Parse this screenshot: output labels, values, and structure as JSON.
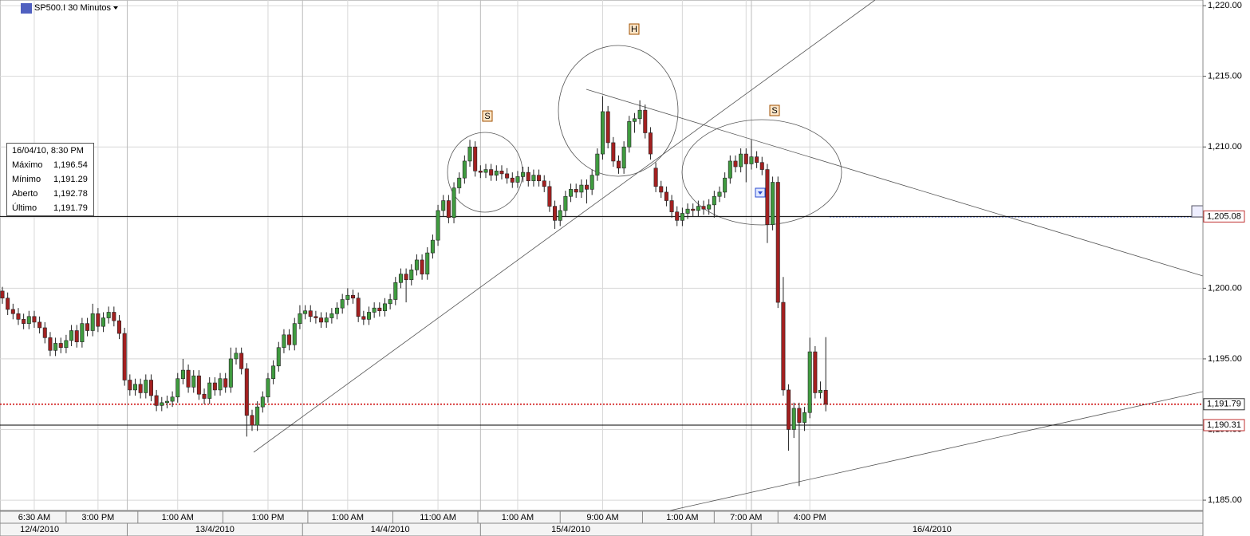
{
  "chart_data": {
    "type": "candlestick",
    "title": "SP500.I 30 Minutos",
    "up_color": "#3f9b3f",
    "down_color": "#a32020",
    "grid": true,
    "ylim": [
      1184.27,
      1220.4
    ],
    "yticks": [
      {
        "value": 1185,
        "label": "1,185.00"
      },
      {
        "value": 1190,
        "label": "1,190.00"
      },
      {
        "value": 1195,
        "label": "1,195.00"
      },
      {
        "value": 1200,
        "label": "1,200.00"
      },
      {
        "value": 1205,
        "label": "1,205.00"
      },
      {
        "value": 1210,
        "label": "1,210.00"
      },
      {
        "value": 1215,
        "label": "1,215.00"
      },
      {
        "value": 1220,
        "label": "1,220.00"
      }
    ],
    "xlim": [
      0,
      226
    ],
    "xticks": [
      {
        "value": 6,
        "label": "6:30 AM"
      },
      {
        "value": 18,
        "label": "3:00 PM"
      },
      {
        "value": 33,
        "label": "1:00 AM"
      },
      {
        "value": 50,
        "label": "1:00 PM"
      },
      {
        "value": 65,
        "label": "1:00 AM"
      },
      {
        "value": 82,
        "label": "11:00 AM"
      },
      {
        "value": 97,
        "label": "1:00 AM"
      },
      {
        "value": 113,
        "label": "9:00 AM"
      },
      {
        "value": 128,
        "label": "1:00 AM"
      },
      {
        "value": 140,
        "label": "7:00 AM"
      },
      {
        "value": 152,
        "label": "4:00 PM"
      }
    ],
    "date_ticks": [
      {
        "value": 7,
        "label": "12/4/2010"
      },
      {
        "value": 40,
        "label": "13/4/2010"
      },
      {
        "value": 73,
        "label": "14/4/2010"
      },
      {
        "value": 107,
        "label": "15/4/2010"
      },
      {
        "value": 175,
        "label": "16/4/2010"
      }
    ],
    "price_lines": [
      {
        "value": 1205.08,
        "label": "1,205.08",
        "color": "#000000"
      },
      {
        "value": 1191.79,
        "label": "1,191.79",
        "color": "#cc0000"
      },
      {
        "value": 1190.31,
        "label": "1,190.31",
        "color": "#000000"
      }
    ],
    "annotations": [
      "S",
      "H",
      "S"
    ],
    "info_box": {
      "title": "16/04/10, 8:30 PM",
      "rows": [
        [
          "Máximo",
          "1,196.54"
        ],
        [
          "Mínimo",
          "1,191.29"
        ],
        [
          "Aberto",
          "1,192.78"
        ],
        [
          "Último",
          "1,191.79"
        ]
      ]
    },
    "ohlc": [
      [
        1199.8,
        1200.1,
        1198.9,
        1199.3
      ],
      [
        1199.3,
        1199.7,
        1198.1,
        1198.5
      ],
      [
        1198.5,
        1198.9,
        1197.8,
        1198.2
      ],
      [
        1198.2,
        1198.6,
        1197.4,
        1197.8
      ],
      [
        1197.8,
        1198.2,
        1197.1,
        1197.5
      ],
      [
        1197.5,
        1198.4,
        1197.1,
        1198.0
      ],
      [
        1198.0,
        1198.4,
        1197.2,
        1197.6
      ],
      [
        1197.6,
        1198.0,
        1196.8,
        1197.2
      ],
      [
        1197.2,
        1197.6,
        1196.1,
        1196.5
      ],
      [
        1196.5,
        1196.9,
        1195.2,
        1195.6
      ],
      [
        1195.6,
        1196.5,
        1195.2,
        1196.1
      ],
      [
        1196.1,
        1196.5,
        1195.4,
        1195.8
      ],
      [
        1195.8,
        1196.7,
        1195.4,
        1196.3
      ],
      [
        1196.3,
        1197.4,
        1195.9,
        1197.0
      ],
      [
        1197.0,
        1197.4,
        1195.8,
        1196.2
      ],
      [
        1196.2,
        1197.9,
        1195.8,
        1197.5
      ],
      [
        1197.5,
        1197.9,
        1196.6,
        1197.0
      ],
      [
        1197.0,
        1198.9,
        1196.6,
        1198.2
      ],
      [
        1198.2,
        1198.6,
        1196.9,
        1197.3
      ],
      [
        1197.3,
        1198.3,
        1196.9,
        1197.9
      ],
      [
        1197.9,
        1198.7,
        1197.5,
        1198.3
      ],
      [
        1198.3,
        1198.7,
        1197.3,
        1197.7
      ],
      [
        1197.7,
        1198.1,
        1196.4,
        1196.8
      ],
      [
        1196.8,
        1197.2,
        1193.1,
        1193.5
      ],
      [
        1193.5,
        1193.9,
        1192.4,
        1192.8
      ],
      [
        1192.8,
        1193.6,
        1192.4,
        1193.2
      ],
      [
        1193.2,
        1193.6,
        1192.2,
        1192.6
      ],
      [
        1192.6,
        1193.9,
        1192.2,
        1193.5
      ],
      [
        1193.5,
        1193.9,
        1192.0,
        1192.4
      ],
      [
        1192.4,
        1192.8,
        1191.3,
        1191.7
      ],
      [
        1191.7,
        1192.3,
        1191.3,
        1191.9
      ],
      [
        1191.9,
        1192.4,
        1191.5,
        1192.0
      ],
      [
        1192.0,
        1192.7,
        1191.6,
        1192.3
      ],
      [
        1192.3,
        1194.0,
        1191.9,
        1193.6
      ],
      [
        1193.6,
        1195.0,
        1193.2,
        1194.2
      ],
      [
        1194.2,
        1194.6,
        1192.6,
        1193.0
      ],
      [
        1193.0,
        1194.2,
        1192.6,
        1193.8
      ],
      [
        1193.8,
        1194.2,
        1192.1,
        1192.5
      ],
      [
        1192.5,
        1192.9,
        1191.8,
        1192.2
      ],
      [
        1192.2,
        1193.7,
        1191.8,
        1193.3
      ],
      [
        1193.3,
        1193.7,
        1192.4,
        1192.8
      ],
      [
        1192.8,
        1194.0,
        1192.4,
        1193.6
      ],
      [
        1193.6,
        1194.0,
        1192.6,
        1193.0
      ],
      [
        1193.0,
        1195.8,
        1192.6,
        1195.0
      ],
      [
        1195.0,
        1195.8,
        1194.6,
        1195.4
      ],
      [
        1195.4,
        1195.8,
        1193.9,
        1194.3
      ],
      [
        1194.3,
        1194.7,
        1189.5,
        1191.0
      ],
      [
        1191.0,
        1191.4,
        1189.9,
        1190.3
      ],
      [
        1190.3,
        1192.0,
        1189.9,
        1191.6
      ],
      [
        1191.6,
        1192.7,
        1191.2,
        1192.3
      ],
      [
        1192.3,
        1194.0,
        1191.9,
        1193.6
      ],
      [
        1193.6,
        1194.9,
        1193.2,
        1194.5
      ],
      [
        1194.5,
        1196.2,
        1194.1,
        1195.8
      ],
      [
        1195.8,
        1197.1,
        1195.4,
        1196.7
      ],
      [
        1196.7,
        1197.1,
        1195.6,
        1196.0
      ],
      [
        1196.0,
        1197.9,
        1195.6,
        1197.5
      ],
      [
        1197.5,
        1198.8,
        1197.1,
        1198.2
      ],
      [
        1198.2,
        1198.8,
        1197.8,
        1198.4
      ],
      [
        1198.4,
        1198.8,
        1197.6,
        1198.0
      ],
      [
        1198.0,
        1198.4,
        1197.5,
        1197.9
      ],
      [
        1197.9,
        1198.3,
        1197.2,
        1197.6
      ],
      [
        1197.6,
        1198.3,
        1197.2,
        1197.9
      ],
      [
        1197.9,
        1198.6,
        1197.5,
        1198.2
      ],
      [
        1198.2,
        1199.0,
        1197.8,
        1198.6
      ],
      [
        1198.6,
        1199.6,
        1198.2,
        1199.2
      ],
      [
        1199.2,
        1200.0,
        1198.8,
        1199.5
      ],
      [
        1199.5,
        1199.9,
        1198.9,
        1199.3
      ],
      [
        1199.3,
        1199.7,
        1197.6,
        1198.0
      ],
      [
        1198.0,
        1198.4,
        1197.4,
        1197.8
      ],
      [
        1197.8,
        1198.7,
        1197.4,
        1198.3
      ],
      [
        1198.3,
        1199.0,
        1197.9,
        1198.6
      ],
      [
        1198.6,
        1199.0,
        1198.0,
        1198.4
      ],
      [
        1198.4,
        1199.3,
        1198.0,
        1198.9
      ],
      [
        1198.9,
        1199.6,
        1198.5,
        1199.2
      ],
      [
        1199.2,
        1200.8,
        1198.8,
        1200.4
      ],
      [
        1200.4,
        1201.4,
        1200.0,
        1201.0
      ],
      [
        1201.0,
        1201.4,
        1199.0,
        1200.6
      ],
      [
        1200.6,
        1201.7,
        1200.2,
        1201.3
      ],
      [
        1201.3,
        1202.4,
        1200.9,
        1202.0
      ],
      [
        1202.0,
        1202.4,
        1200.6,
        1201.0
      ],
      [
        1201.0,
        1202.9,
        1200.6,
        1202.5
      ],
      [
        1202.5,
        1203.8,
        1202.1,
        1203.4
      ],
      [
        1203.4,
        1205.9,
        1203.0,
        1205.5
      ],
      [
        1205.5,
        1206.6,
        1205.1,
        1206.2
      ],
      [
        1206.2,
        1206.6,
        1204.6,
        1205.0
      ],
      [
        1205.0,
        1207.5,
        1204.6,
        1207.1
      ],
      [
        1207.1,
        1208.2,
        1206.7,
        1207.8
      ],
      [
        1207.8,
        1209.4,
        1207.4,
        1209.0
      ],
      [
        1209.0,
        1210.5,
        1208.6,
        1210.0
      ],
      [
        1210.0,
        1210.4,
        1207.9,
        1208.3
      ],
      [
        1208.3,
        1208.7,
        1207.8,
        1208.2
      ],
      [
        1208.2,
        1208.8,
        1207.8,
        1208.4
      ],
      [
        1208.4,
        1208.8,
        1207.6,
        1208.0
      ],
      [
        1208.0,
        1208.7,
        1207.6,
        1208.3
      ],
      [
        1208.3,
        1208.7,
        1207.7,
        1208.1
      ],
      [
        1208.1,
        1208.5,
        1207.4,
        1207.8
      ],
      [
        1207.8,
        1208.2,
        1207.1,
        1207.5
      ],
      [
        1207.5,
        1208.3,
        1207.1,
        1207.9
      ],
      [
        1207.9,
        1208.6,
        1207.5,
        1208.2
      ],
      [
        1208.2,
        1208.6,
        1207.2,
        1207.6
      ],
      [
        1207.6,
        1208.4,
        1207.2,
        1208.0
      ],
      [
        1208.0,
        1208.4,
        1207.2,
        1207.6
      ],
      [
        1207.6,
        1208.0,
        1206.8,
        1207.2
      ],
      [
        1207.2,
        1207.6,
        1205.4,
        1205.8
      ],
      [
        1205.8,
        1206.2,
        1204.2,
        1204.8
      ],
      [
        1204.8,
        1205.9,
        1204.4,
        1205.5
      ],
      [
        1205.5,
        1206.9,
        1205.1,
        1206.5
      ],
      [
        1206.5,
        1207.4,
        1206.1,
        1207.0
      ],
      [
        1207.0,
        1207.4,
        1206.4,
        1206.8
      ],
      [
        1206.8,
        1207.7,
        1206.4,
        1207.3
      ],
      [
        1207.3,
        1207.7,
        1206.0,
        1207.0
      ],
      [
        1207.0,
        1208.4,
        1206.6,
        1208.0
      ],
      [
        1208.0,
        1209.9,
        1207.6,
        1209.5
      ],
      [
        1209.5,
        1213.6,
        1209.1,
        1212.5
      ],
      [
        1212.5,
        1212.9,
        1209.9,
        1210.3
      ],
      [
        1210.3,
        1210.7,
        1208.6,
        1209.0
      ],
      [
        1209.0,
        1209.4,
        1208.1,
        1208.5
      ],
      [
        1208.5,
        1210.4,
        1208.1,
        1210.0
      ],
      [
        1210.0,
        1212.2,
        1209.6,
        1211.8
      ],
      [
        1211.8,
        1212.4,
        1211.0,
        1212.0
      ],
      [
        1212.0,
        1213.3,
        1211.6,
        1212.6
      ],
      [
        1212.6,
        1213.0,
        1210.6,
        1211.0
      ],
      [
        1211.0,
        1211.4,
        1209.1,
        1209.5
      ],
      [
        1208.5,
        1208.9,
        1206.8,
        1207.2
      ],
      [
        1207.2,
        1207.6,
        1206.4,
        1206.8
      ],
      [
        1206.8,
        1207.2,
        1205.8,
        1206.2
      ],
      [
        1206.2,
        1206.6,
        1205.0,
        1205.4
      ],
      [
        1205.4,
        1205.8,
        1204.4,
        1204.8
      ],
      [
        1204.8,
        1205.7,
        1204.4,
        1205.3
      ],
      [
        1205.3,
        1206.0,
        1204.9,
        1205.6
      ],
      [
        1205.6,
        1206.0,
        1205.1,
        1205.5
      ],
      [
        1205.5,
        1206.2,
        1205.1,
        1205.8
      ],
      [
        1205.8,
        1206.2,
        1205.2,
        1205.6
      ],
      [
        1205.6,
        1206.3,
        1205.2,
        1205.9
      ],
      [
        1205.9,
        1206.9,
        1205.0,
        1206.5
      ],
      [
        1206.5,
        1207.2,
        1206.1,
        1206.8
      ],
      [
        1206.8,
        1208.2,
        1206.4,
        1207.8
      ],
      [
        1207.8,
        1209.4,
        1207.4,
        1209.0
      ],
      [
        1209.0,
        1209.4,
        1208.2,
        1208.6
      ],
      [
        1208.6,
        1209.9,
        1208.2,
        1209.5
      ],
      [
        1209.5,
        1209.9,
        1207.5,
        1208.8
      ],
      [
        1208.8,
        1210.5,
        1208.4,
        1209.3
      ],
      [
        1209.3,
        1209.7,
        1208.5,
        1208.9
      ],
      [
        1208.9,
        1209.3,
        1208.0,
        1208.4
      ],
      [
        1208.4,
        1208.8,
        1203.2,
        1204.5
      ],
      [
        1204.5,
        1207.9,
        1204.1,
        1207.5
      ],
      [
        1207.5,
        1207.9,
        1198.6,
        1199.0
      ],
      [
        1199.0,
        1200.8,
        1192.4,
        1192.8
      ],
      [
        1192.8,
        1193.2,
        1188.5,
        1190.0
      ],
      [
        1190.0,
        1191.9,
        1189.4,
        1191.5
      ],
      [
        1191.5,
        1191.9,
        1186.0,
        1190.5
      ],
      [
        1190.5,
        1191.6,
        1189.9,
        1191.2
      ],
      [
        1191.2,
        1196.5,
        1190.8,
        1195.5
      ],
      [
        1195.5,
        1195.9,
        1192.2,
        1192.6
      ],
      [
        1192.6,
        1193.4,
        1192.2,
        1192.78
      ],
      [
        1192.78,
        1196.54,
        1191.29,
        1191.79
      ]
    ]
  }
}
